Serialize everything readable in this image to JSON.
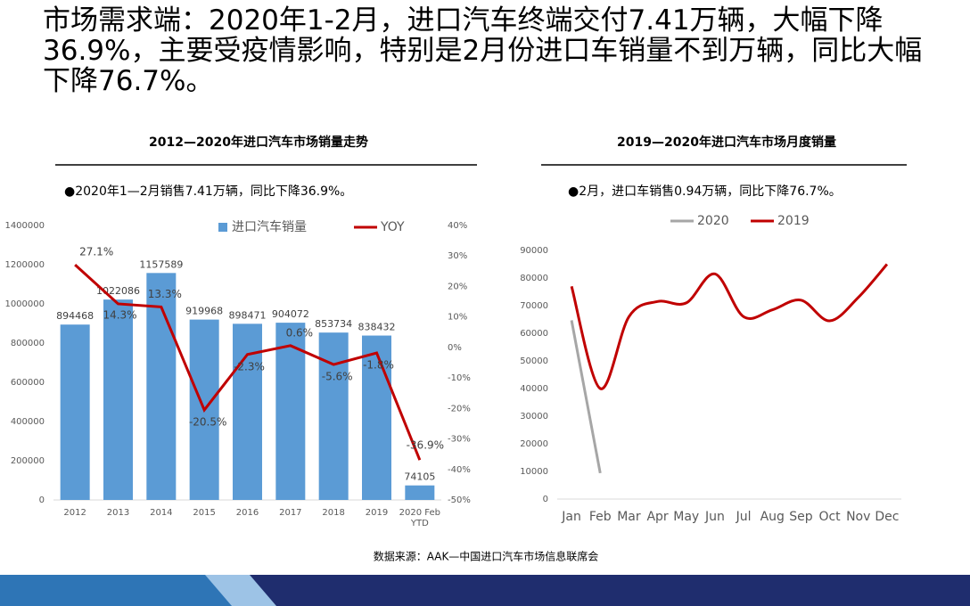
{
  "title": "市场需求端：2020年1-2月，进口汽车终端交付7.41万辆，大幅下降36.9%，主要受疫情影响，特别是2月份进口车销量不到万辆，同比大幅下降76.7%。",
  "source": "数据来源：AAK—中国进口汽车市场信息联席会",
  "chart_data": [
    {
      "type": "bar",
      "title": "2012—2020年进口汽车市场销量走势",
      "annotation": "●2020年1—2月销售7.41万辆，同比下降36.9%。",
      "categories": [
        "2012",
        "2013",
        "2014",
        "2015",
        "2016",
        "2017",
        "2018",
        "2019",
        "2020 Feb YTD"
      ],
      "series": [
        {
          "name": "进口汽车销量",
          "color": "#5b9bd5",
          "values": [
            894468,
            1022086,
            1157589,
            919968,
            898471,
            904072,
            853734,
            838432,
            74105
          ]
        },
        {
          "name": "YOY",
          "color": "#c00000",
          "type": "line",
          "axis": "y2",
          "values": [
            27.1,
            14.3,
            13.3,
            -20.5,
            -2.3,
            0.6,
            -5.6,
            -1.8,
            -36.9
          ],
          "value_labels": [
            "27.1%",
            "14.3%",
            "13.3%",
            "-20.5%",
            "-2.3%",
            "0.6%",
            "-5.6%",
            "-1.8%",
            "-36.9%"
          ]
        }
      ],
      "ylim": [
        0,
        1400000
      ],
      "yticks": [
        0,
        200000,
        400000,
        600000,
        800000,
        1000000,
        1200000,
        1400000
      ],
      "y2lim": [
        -50,
        40
      ],
      "y2ticks": [
        {
          "value": -50,
          "label": "-50%"
        },
        {
          "value": -40,
          "label": "-40%"
        },
        {
          "value": -30,
          "label": "-30%"
        },
        {
          "value": -20,
          "label": "-20%"
        },
        {
          "value": -10,
          "label": "-10%"
        },
        {
          "value": 0,
          "label": "0%"
        },
        {
          "value": 10,
          "label": "10%"
        },
        {
          "value": 20,
          "label": "20%"
        },
        {
          "value": 30,
          "label": "30%"
        },
        {
          "value": 40,
          "label": "40%"
        }
      ]
    },
    {
      "type": "line",
      "title": "2019—2020年进口汽车市场月度销量",
      "annotation": "●2月，进口车销售0.94万辆，同比下降76.7%。",
      "smooth": true,
      "categories": [
        "Jan",
        "Feb",
        "Mar",
        "Apr",
        "May",
        "Jun",
        "Jul",
        "Aug",
        "Sep",
        "Oct",
        "Nov",
        "Dec"
      ],
      "series": [
        {
          "name": "2020",
          "color": "#a6a6a6",
          "values": [
            64700,
            9400,
            null,
            null,
            null,
            null,
            null,
            null,
            null,
            null,
            null,
            null
          ]
        },
        {
          "name": "2019",
          "color": "#c00000",
          "values": [
            77000,
            40000,
            66000,
            71500,
            71000,
            81500,
            66000,
            68500,
            72000,
            64500,
            73000,
            85000
          ]
        }
      ],
      "ylim": [
        0,
        90000
      ],
      "yticks": [
        0,
        10000,
        20000,
        30000,
        40000,
        50000,
        60000,
        70000,
        80000,
        90000
      ]
    }
  ]
}
